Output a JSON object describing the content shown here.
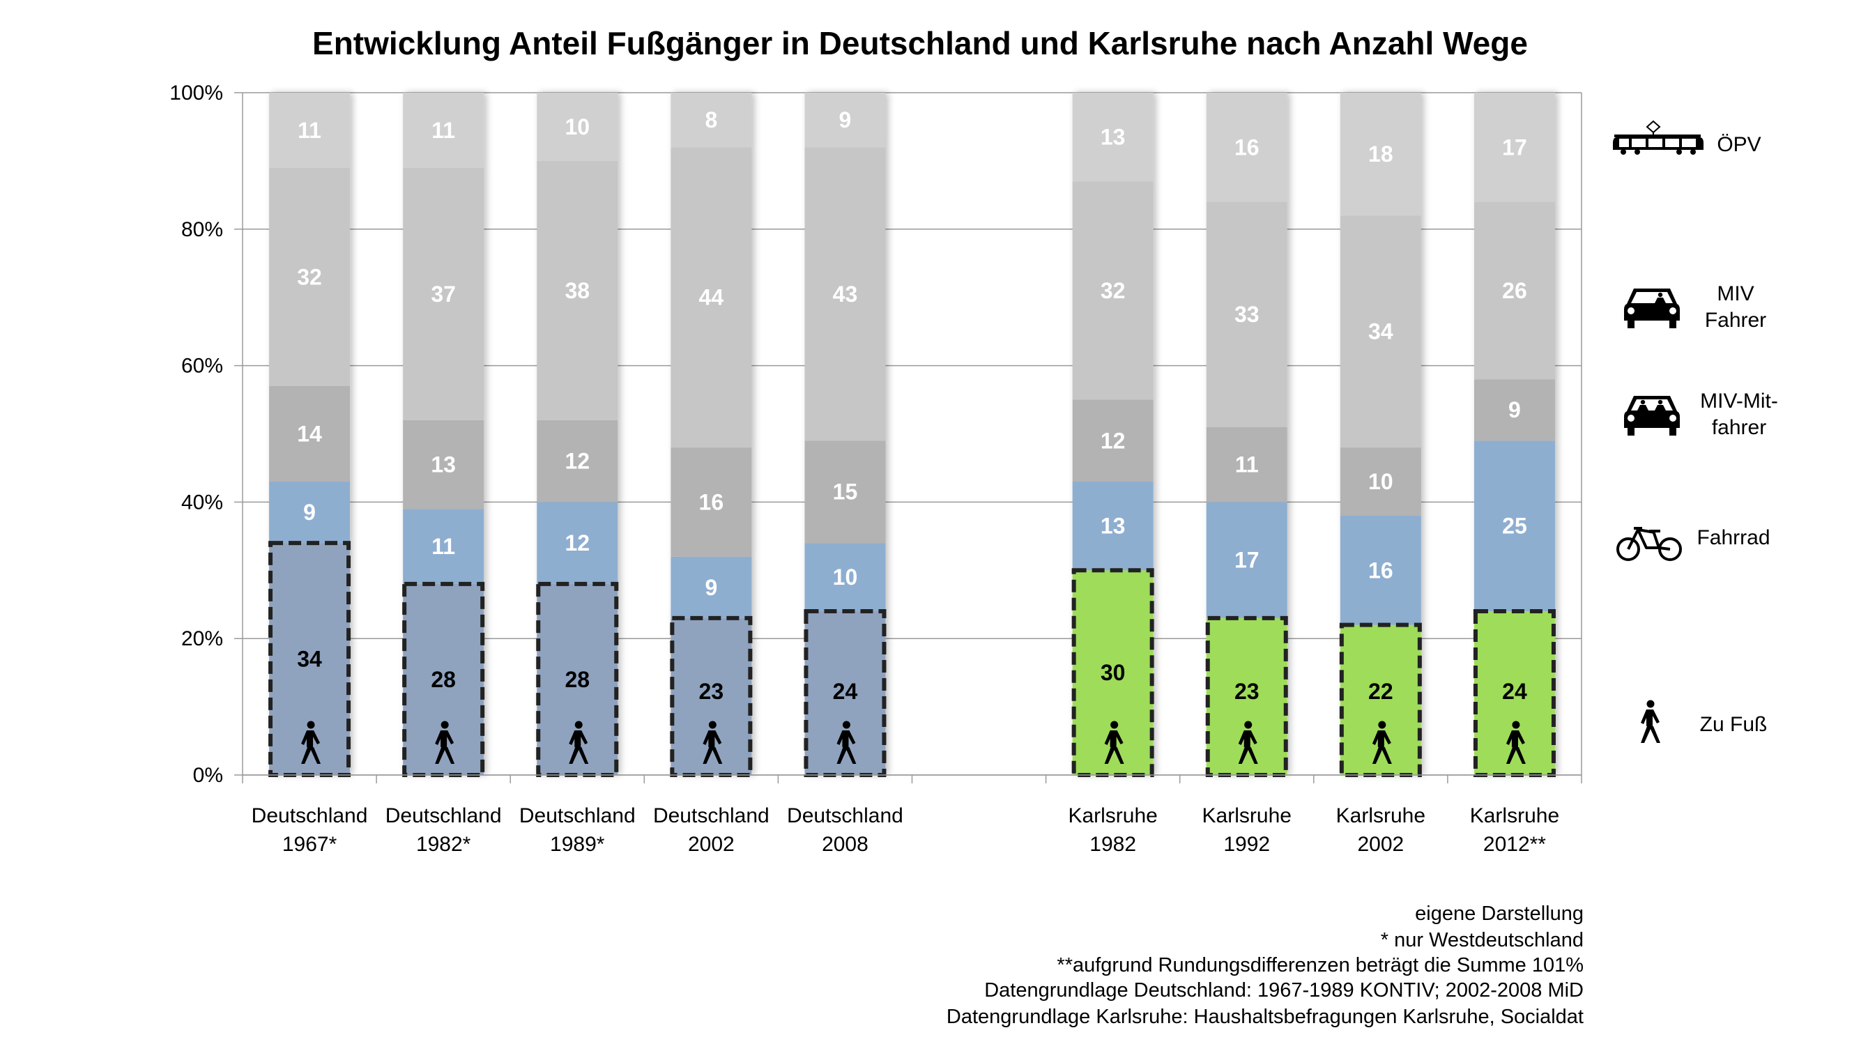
{
  "chart_data": {
    "type": "bar",
    "stacked": true,
    "title": "Entwicklung Anteil Fußgänger in Deutschland und Karlsruhe nach Anzahl Wege",
    "xlabel": "",
    "ylabel": "",
    "ylim": [
      0,
      100
    ],
    "y_ticks": [
      "0%",
      "20%",
      "40%",
      "60%",
      "80%",
      "100%"
    ],
    "grid": true,
    "legend_position": "right",
    "categories": [
      {
        "line1": "Deutschland",
        "line2": "1967*",
        "group": "Deutschland"
      },
      {
        "line1": "Deutschland",
        "line2": "1982*",
        "group": "Deutschland"
      },
      {
        "line1": "Deutschland",
        "line2": "1989*",
        "group": "Deutschland"
      },
      {
        "line1": "Deutschland",
        "line2": "2002",
        "group": "Deutschland"
      },
      {
        "line1": "Deutschland",
        "line2": "2008",
        "group": "Deutschland"
      },
      {
        "line1": "",
        "line2": "",
        "group": "gap"
      },
      {
        "line1": "Karlsruhe",
        "line2": "1982",
        "group": "Karlsruhe"
      },
      {
        "line1": "Karlsruhe",
        "line2": "1992",
        "group": "Karlsruhe"
      },
      {
        "line1": "Karlsruhe",
        "line2": "2002",
        "group": "Karlsruhe"
      },
      {
        "line1": "Karlsruhe",
        "line2": "2012**",
        "group": "Karlsruhe"
      }
    ],
    "series": [
      {
        "name": "Zu Fuß",
        "key": "walk",
        "icon": "pedestrian-icon",
        "colors": {
          "Deutschland": "#8fa3bf",
          "Karlsruhe": "#9edc5a"
        },
        "label_color": "#000000",
        "dashed_outline": true,
        "values": [
          34,
          28,
          28,
          23,
          24,
          null,
          30,
          23,
          22,
          24
        ]
      },
      {
        "name": "Fahrrad",
        "key": "bike",
        "icon": "bicycle-icon",
        "color": "#8eaed0",
        "label_color": "#ffffff",
        "values": [
          9,
          11,
          12,
          9,
          10,
          null,
          13,
          17,
          16,
          25
        ]
      },
      {
        "name": "MIV-Mit-fahrer",
        "key": "passenger",
        "icon": "car-passengers-icon",
        "color": "#b3b3b3",
        "label_color": "#ffffff",
        "values": [
          14,
          13,
          12,
          16,
          15,
          null,
          12,
          11,
          10,
          9
        ]
      },
      {
        "name": "MIV Fahrer",
        "key": "driver",
        "icon": "car-driver-icon",
        "color": "#c6c6c6",
        "label_color": "#ffffff",
        "values": [
          32,
          37,
          38,
          44,
          43,
          null,
          32,
          33,
          34,
          26
        ]
      },
      {
        "name": "ÖPV",
        "key": "transit",
        "icon": "tram-icon",
        "color": "#d0d0d0",
        "label_color": "#ffffff",
        "values": [
          11,
          11,
          10,
          8,
          9,
          null,
          13,
          16,
          18,
          17
        ]
      }
    ],
    "legend": [
      {
        "key": "transit",
        "lines": [
          "ÖPV"
        ],
        "icon": "tram-icon"
      },
      {
        "key": "driver",
        "lines": [
          "MIV",
          "Fahrer"
        ],
        "icon": "car-driver-icon"
      },
      {
        "key": "passenger",
        "lines": [
          "MIV-Mit-",
          "fahrer"
        ],
        "icon": "car-passengers-icon"
      },
      {
        "key": "bike",
        "lines": [
          "Fahrrad"
        ],
        "icon": "bicycle-icon"
      },
      {
        "key": "walk",
        "lines": [
          "Zu Fuß"
        ],
        "icon": "pedestrian-icon"
      }
    ],
    "footnotes": [
      "eigene Darstellung",
      "* nur Westdeutschland",
      "**aufgrund Rundungsdifferenzen beträgt die Summe 101%",
      "Datengrundlage Deutschland: 1967-1989 KONTIV; 2002-2008 MiD",
      "Datengrundlage Karlsruhe: Haushaltsbefragungen Karlsruhe,  Socialdat"
    ]
  }
}
